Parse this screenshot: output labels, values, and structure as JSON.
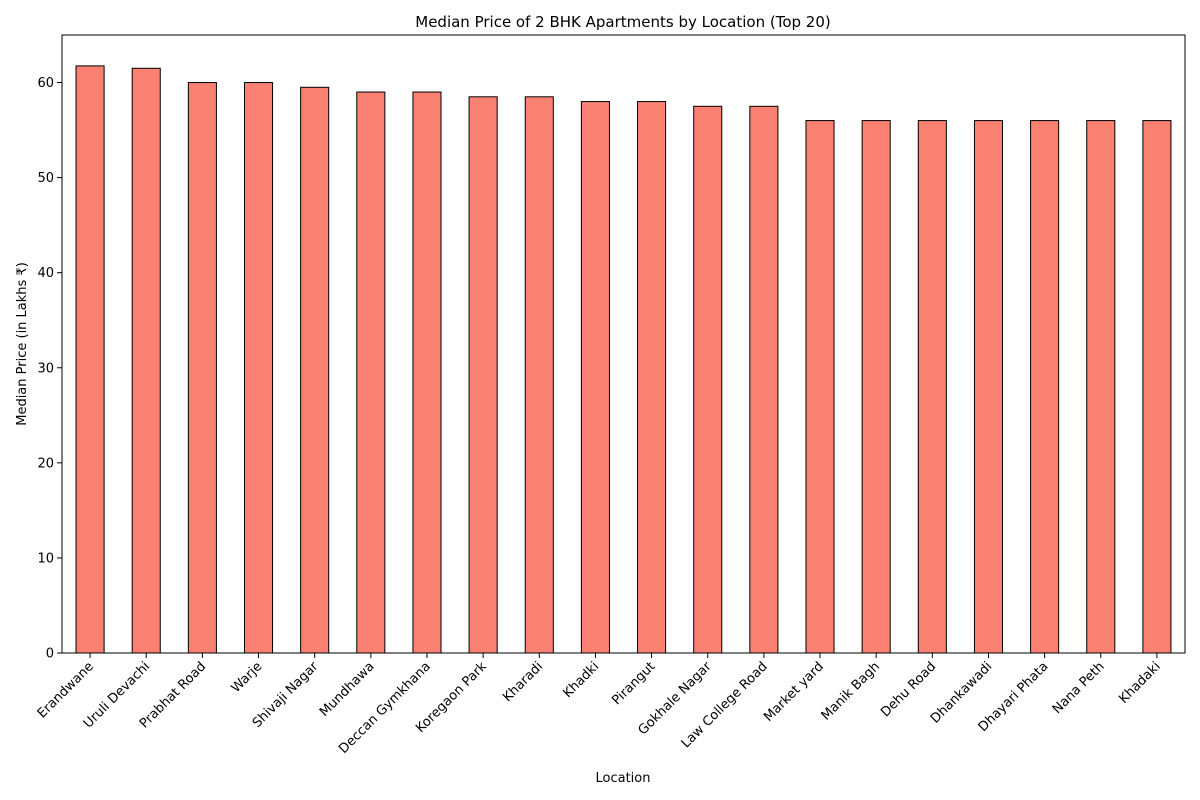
{
  "chart_data": {
    "type": "bar",
    "title": "Median Price of 2 BHK Apartments by Location (Top 20)",
    "xlabel": "Location",
    "ylabel": "Median Price (in Lakhs ₹)",
    "categories": [
      "Erandwane",
      "Uruli Devachi",
      "Prabhat Road",
      "Warje",
      "Shivaji Nagar",
      "Mundhawa",
      "Deccan Gymkhana",
      "Koregaon Park",
      "Kharadi",
      "Khadki",
      "Pirangut",
      "Gokhale Nagar",
      "Law College Road",
      "Market yard",
      "Manik Bagh",
      "Dehu Road",
      "Dhankawadi",
      "Dhayari Phata",
      "Nana Peth",
      "Khadaki"
    ],
    "values": [
      61.75,
      61.5,
      60.0,
      60.0,
      59.5,
      59.0,
      59.0,
      58.5,
      58.5,
      58.0,
      58.0,
      57.5,
      57.5,
      56.0,
      56.0,
      56.0,
      56.0,
      56.0,
      56.0,
      56.0
    ],
    "ylim": [
      0,
      65
    ],
    "yticks": [
      0,
      10,
      20,
      30,
      40,
      50,
      60
    ],
    "bar_color": "#fa8072",
    "edge_color": "#000000",
    "grid": false,
    "legend": "none"
  }
}
